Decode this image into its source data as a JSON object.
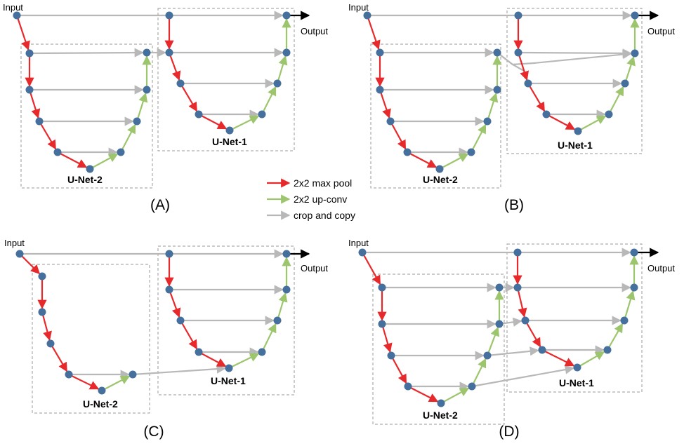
{
  "labels": {
    "input": "Input",
    "output": "Output",
    "unet1": "U-Net-1",
    "unet2": "U-Net-2"
  },
  "panels": [
    {
      "id": "A",
      "label": "(A)"
    },
    {
      "id": "B",
      "label": "(B)"
    },
    {
      "id": "C",
      "label": "(C)"
    },
    {
      "id": "D",
      "label": "(D)"
    }
  ],
  "legend": [
    {
      "label": "2x2 max pool",
      "color": "#e8292b"
    },
    {
      "label": "2x2 up-conv",
      "color": "#9cc56d"
    },
    {
      "label": "crop and copy",
      "color": "#b8b8b8"
    }
  ],
  "colors": {
    "maxpool": "#e8292b",
    "upconv": "#9cc56d",
    "copy": "#b8b8b8",
    "node": "#45709d",
    "box": "#9a9a9a"
  }
}
